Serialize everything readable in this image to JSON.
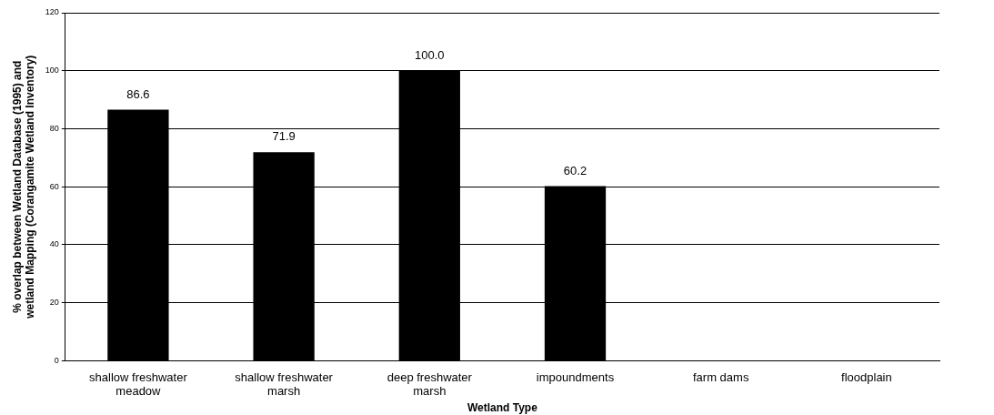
{
  "chart_data": {
    "type": "bar",
    "xlabel": "Wetland Type",
    "ylabel": "% overlap between Wetland Database (1995) and wetland Mapping (Corangamite Wetland Inventory)",
    "categories": [
      "shallow freshwater meadow",
      "shallow freshwater marsh",
      "deep freshwater marsh",
      "impoundments",
      "farm dams",
      "floodplain"
    ],
    "values": [
      86.6,
      71.9,
      100.0,
      60.2,
      null,
      null
    ],
    "value_labels": [
      "86.6",
      "71.9",
      "100.0",
      "60.2",
      null,
      null
    ],
    "color": "#000000",
    "ylim": [
      0,
      120
    ],
    "yticks": [
      0,
      20,
      40,
      60,
      80,
      100,
      120
    ],
    "grid": "y"
  }
}
